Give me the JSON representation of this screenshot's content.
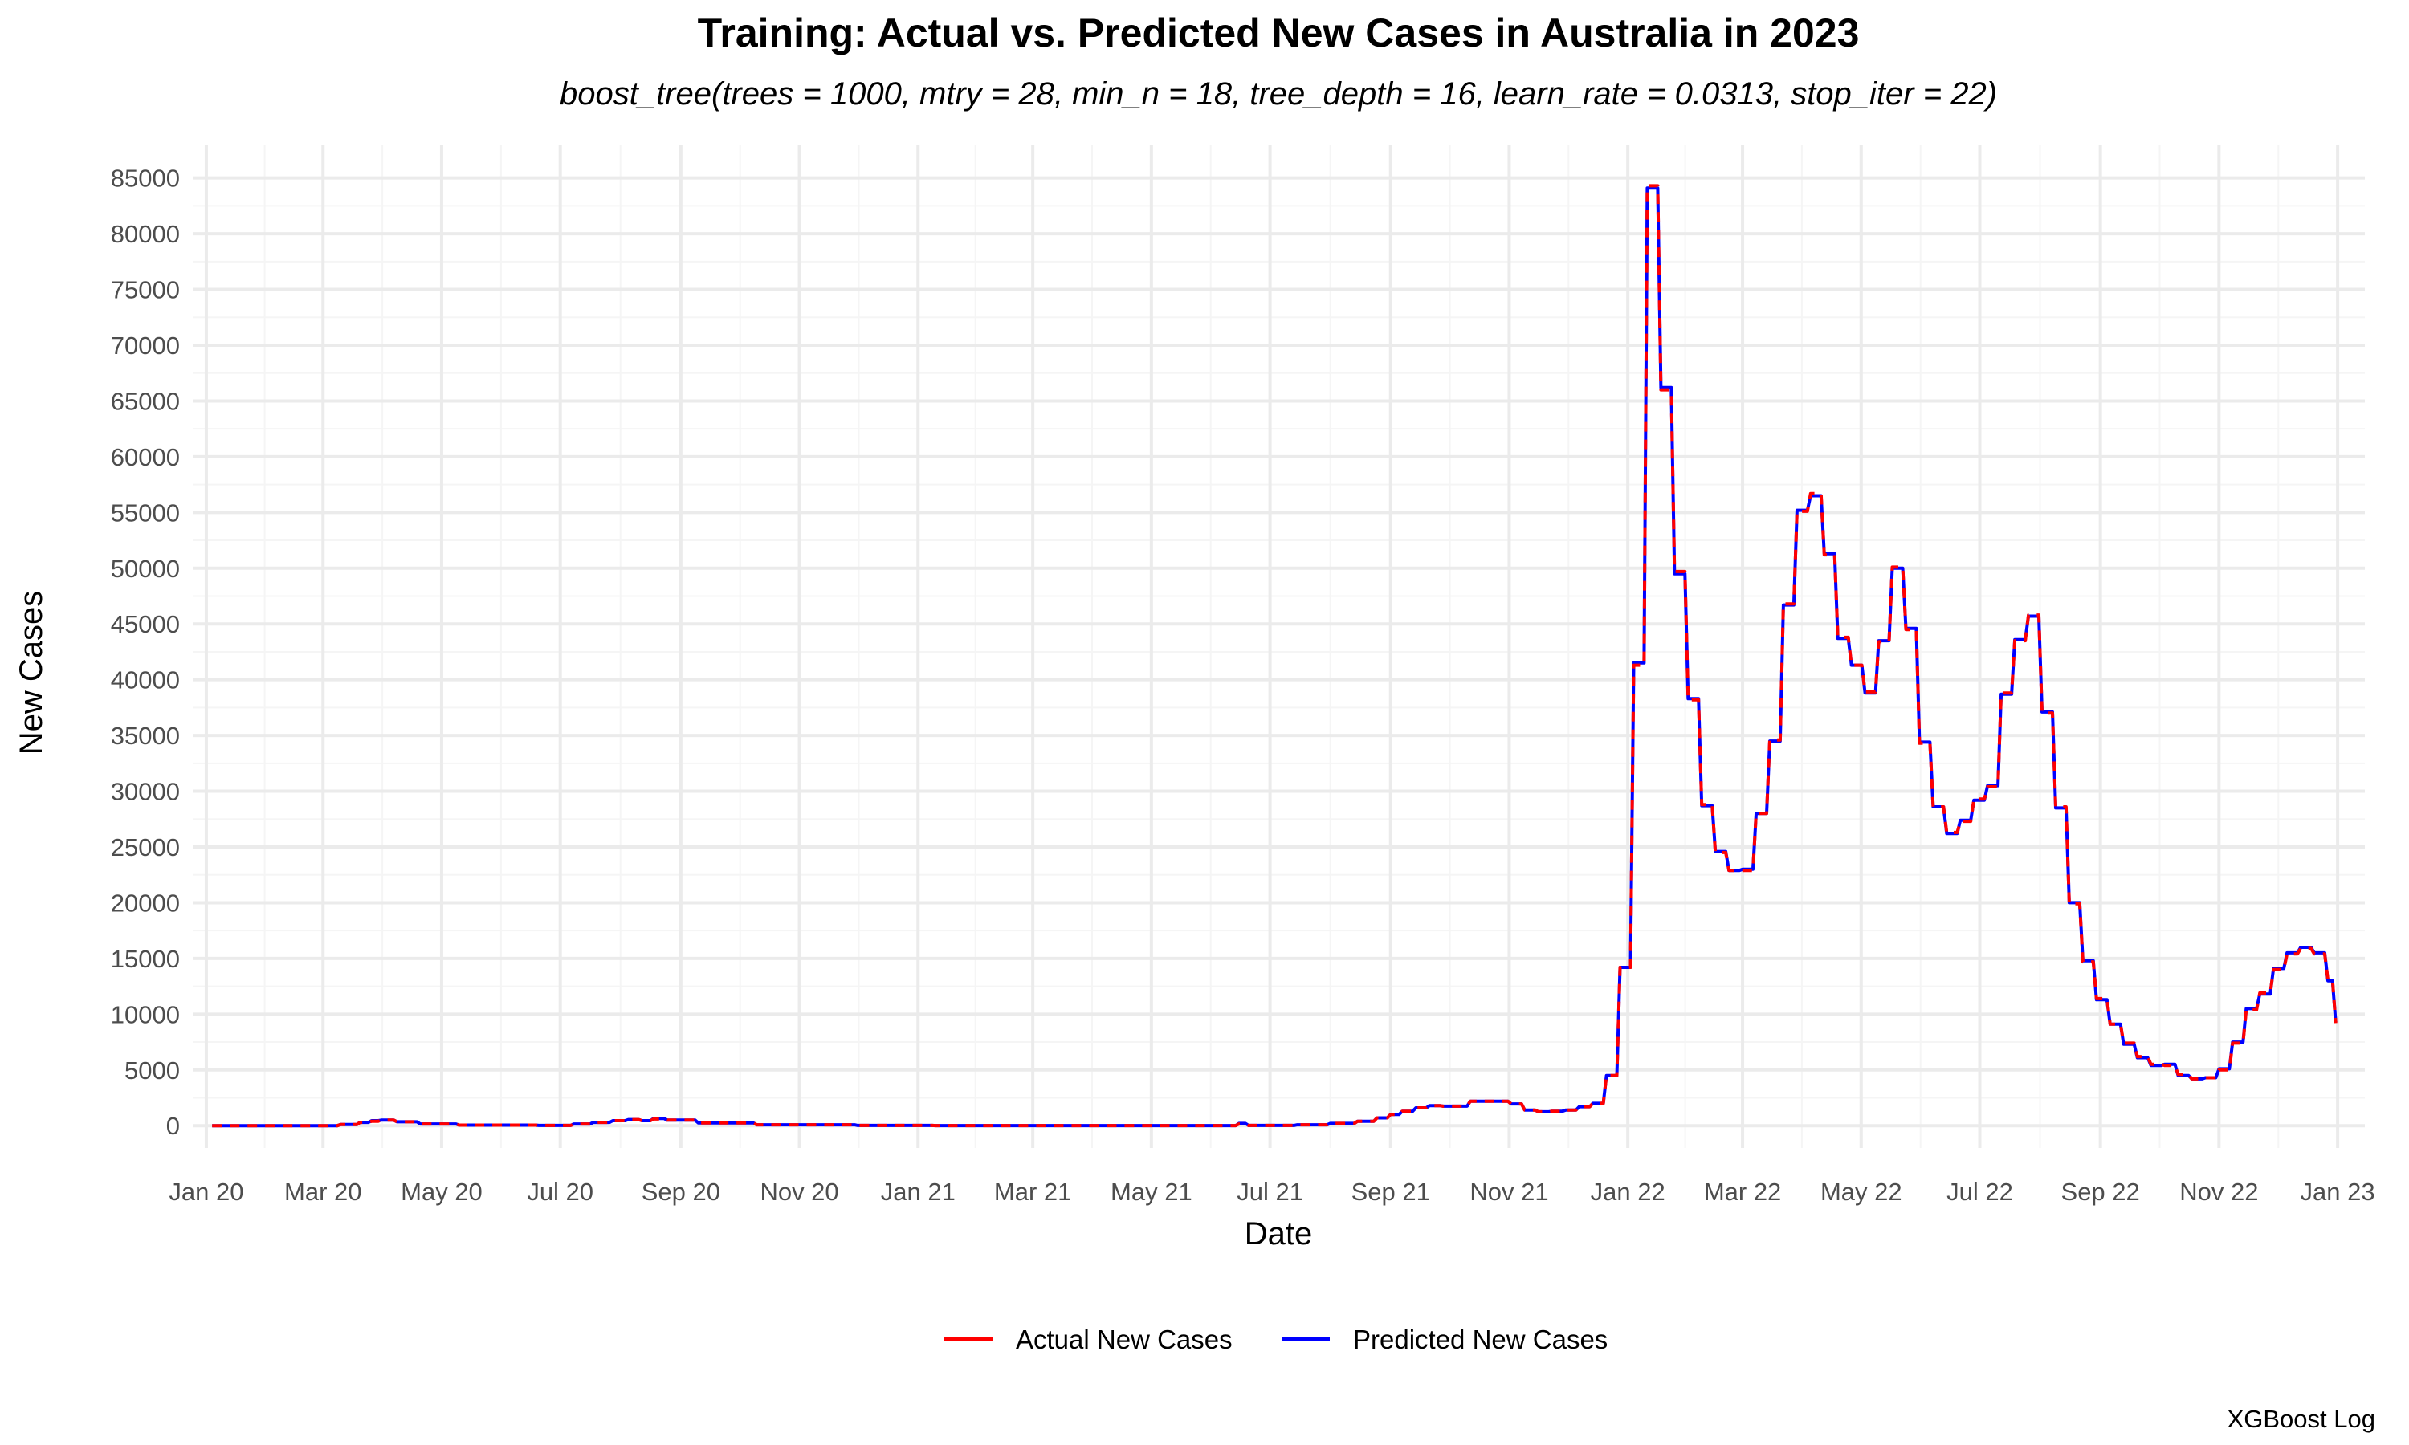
{
  "chart_data": {
    "type": "line",
    "title": "Training: Actual vs. Predicted New Cases in Australia in 2023",
    "subtitle": "boost_tree(trees = 1000, mtry = 28, min_n = 18, tree_depth = 16, learn_rate = 0.0313, stop_iter = 22)",
    "xlabel": "Date",
    "ylabel": "New Cases",
    "caption": "XGBoost Log",
    "xlim": [
      "2019-12-25",
      "2023-01-15"
    ],
    "ylim": [
      -2000,
      88000
    ],
    "x_ticks": [
      "2020-01-01",
      "2020-03-01",
      "2020-05-01",
      "2020-07-01",
      "2020-09-01",
      "2020-11-01",
      "2021-01-01",
      "2021-03-01",
      "2021-05-01",
      "2021-07-01",
      "2021-09-01",
      "2021-11-01",
      "2022-01-01",
      "2022-03-01",
      "2022-05-01",
      "2022-07-01",
      "2022-09-01",
      "2022-11-01",
      "2023-01-01"
    ],
    "x_tick_labels": [
      "Jan 20",
      "Mar 20",
      "May 20",
      "Jul 20",
      "Sep 20",
      "Nov 20",
      "Jan 21",
      "Mar 21",
      "May 21",
      "Jul 21",
      "Sep 21",
      "Nov 21",
      "Jan 22",
      "Mar 22",
      "May 22",
      "Jul 22",
      "Sep 22",
      "Nov 22",
      "Jan 23"
    ],
    "y_ticks": [
      0,
      5000,
      10000,
      15000,
      20000,
      25000,
      30000,
      35000,
      40000,
      45000,
      50000,
      55000,
      60000,
      65000,
      70000,
      75000,
      80000,
      85000
    ],
    "grid": true,
    "legend_position": "bottom",
    "series": [
      {
        "name": "Actual New Cases",
        "color": "#ff0000",
        "dash": "dashed",
        "x": [
          "2020-01-04",
          "2020-02-15",
          "2020-03-10",
          "2020-03-20",
          "2020-03-26",
          "2020-03-31",
          "2020-04-08",
          "2020-04-20",
          "2020-05-10",
          "2020-06-20",
          "2020-07-08",
          "2020-07-18",
          "2020-07-28",
          "2020-08-05",
          "2020-08-12",
          "2020-08-18",
          "2020-08-25",
          "2020-09-10",
          "2020-10-10",
          "2020-12-01",
          "2021-01-10",
          "2021-03-01",
          "2021-05-01",
          "2021-06-10",
          "2021-06-15",
          "2021-06-20",
          "2021-07-15",
          "2021-08-01",
          "2021-08-15",
          "2021-08-25",
          "2021-09-01",
          "2021-09-07",
          "2021-09-14",
          "2021-09-21",
          "2021-09-28",
          "2021-10-12",
          "2021-10-19",
          "2021-11-02",
          "2021-11-09",
          "2021-11-16",
          "2021-11-23",
          "2021-11-30",
          "2021-12-07",
          "2021-12-14",
          "2021-12-21",
          "2021-12-28",
          "2022-01-04",
          "2022-01-11",
          "2022-01-18",
          "2022-01-25",
          "2022-02-01",
          "2022-02-08",
          "2022-02-15",
          "2022-02-22",
          "2022-03-01",
          "2022-03-08",
          "2022-03-15",
          "2022-03-22",
          "2022-03-29",
          "2022-04-05",
          "2022-04-12",
          "2022-04-19",
          "2022-04-26",
          "2022-05-03",
          "2022-05-10",
          "2022-05-17",
          "2022-05-24",
          "2022-05-31",
          "2022-06-07",
          "2022-06-14",
          "2022-06-21",
          "2022-06-28",
          "2022-07-05",
          "2022-07-12",
          "2022-07-19",
          "2022-07-26",
          "2022-08-02",
          "2022-08-09",
          "2022-08-16",
          "2022-08-23",
          "2022-08-30",
          "2022-09-06",
          "2022-09-13",
          "2022-09-20",
          "2022-09-27",
          "2022-10-04",
          "2022-10-11",
          "2022-10-18",
          "2022-10-25",
          "2022-11-01",
          "2022-11-08",
          "2022-11-15",
          "2022-11-22",
          "2022-11-29",
          "2022-12-06",
          "2022-12-13",
          "2022-12-20",
          "2022-12-27",
          "2022-12-31"
        ],
        "y": [
          0,
          0,
          100,
          300,
          400,
          500,
          350,
          150,
          50,
          20,
          150,
          300,
          450,
          550,
          450,
          600,
          500,
          250,
          80,
          20,
          10,
          10,
          10,
          10,
          150,
          20,
          80,
          200,
          400,
          700,
          1000,
          1300,
          1600,
          1800,
          1750,
          2200,
          2200,
          1950,
          1400,
          1250,
          1300,
          1400,
          1700,
          2000,
          4500,
          14200,
          41300,
          84300,
          66000,
          49700,
          38200,
          28800,
          24500,
          22900,
          22900,
          28000,
          34600,
          46800,
          55100,
          56700,
          51200,
          43800,
          41300,
          38900,
          43400,
          50100,
          44500,
          34300,
          28600,
          26300,
          27300,
          29300,
          30400,
          38800,
          43500,
          45800,
          37000,
          28600,
          19900,
          14700,
          11400,
          9100,
          7400,
          6200,
          5500,
          5400,
          4600,
          4200,
          4300,
          5000,
          7400,
          10400,
          11900,
          14000,
          15400,
          15900,
          15400,
          13100,
          9200
        ]
      },
      {
        "name": "Predicted New Cases",
        "color": "#0000ff",
        "dash": "solid",
        "x": [
          "2020-01-04",
          "2020-02-15",
          "2020-03-10",
          "2020-03-20",
          "2020-03-26",
          "2020-03-31",
          "2020-04-08",
          "2020-04-20",
          "2020-05-10",
          "2020-06-20",
          "2020-07-08",
          "2020-07-18",
          "2020-07-28",
          "2020-08-05",
          "2020-08-12",
          "2020-08-18",
          "2020-08-25",
          "2020-09-10",
          "2020-10-10",
          "2020-12-01",
          "2021-01-10",
          "2021-03-01",
          "2021-05-01",
          "2021-06-10",
          "2021-06-15",
          "2021-06-20",
          "2021-07-15",
          "2021-08-01",
          "2021-08-15",
          "2021-08-25",
          "2021-09-01",
          "2021-09-07",
          "2021-09-14",
          "2021-09-21",
          "2021-09-28",
          "2021-10-12",
          "2021-10-19",
          "2021-11-02",
          "2021-11-09",
          "2021-11-16",
          "2021-11-23",
          "2021-11-30",
          "2021-12-07",
          "2021-12-14",
          "2021-12-21",
          "2021-12-28",
          "2022-01-04",
          "2022-01-11",
          "2022-01-18",
          "2022-01-25",
          "2022-02-01",
          "2022-02-08",
          "2022-02-15",
          "2022-02-22",
          "2022-03-01",
          "2022-03-08",
          "2022-03-15",
          "2022-03-22",
          "2022-03-29",
          "2022-04-05",
          "2022-04-12",
          "2022-04-19",
          "2022-04-26",
          "2022-05-03",
          "2022-05-10",
          "2022-05-17",
          "2022-05-24",
          "2022-05-31",
          "2022-06-07",
          "2022-06-14",
          "2022-06-21",
          "2022-06-28",
          "2022-07-05",
          "2022-07-12",
          "2022-07-19",
          "2022-07-26",
          "2022-08-02",
          "2022-08-09",
          "2022-08-16",
          "2022-08-23",
          "2022-08-30",
          "2022-09-06",
          "2022-09-13",
          "2022-09-20",
          "2022-09-27",
          "2022-10-04",
          "2022-10-11",
          "2022-10-18",
          "2022-10-25",
          "2022-11-01",
          "2022-11-08",
          "2022-11-15",
          "2022-11-22",
          "2022-11-29",
          "2022-12-06",
          "2022-12-13",
          "2022-12-20",
          "2022-12-27",
          "2022-12-31"
        ],
        "y": [
          0,
          0,
          100,
          300,
          450,
          500,
          350,
          150,
          50,
          20,
          150,
          300,
          450,
          550,
          450,
          650,
          500,
          250,
          80,
          20,
          10,
          10,
          10,
          10,
          200,
          20,
          80,
          200,
          400,
          700,
          1000,
          1300,
          1600,
          1800,
          1750,
          2200,
          2200,
          1950,
          1400,
          1250,
          1300,
          1400,
          1700,
          2000,
          4500,
          14200,
          41500,
          84100,
          66200,
          49500,
          38300,
          28700,
          24600,
          22900,
          23000,
          28000,
          34500,
          46700,
          55200,
          56500,
          51300,
          43700,
          41300,
          38800,
          43500,
          50000,
          44600,
          34400,
          28600,
          26200,
          27400,
          29200,
          30500,
          38700,
          43600,
          45700,
          37100,
          28500,
          20000,
          14800,
          11300,
          9100,
          7300,
          6100,
          5400,
          5500,
          4500,
          4200,
          4300,
          5100,
          7500,
          10500,
          11800,
          14100,
          15500,
          16000,
          15500,
          13000,
          9300
        ]
      }
    ]
  }
}
